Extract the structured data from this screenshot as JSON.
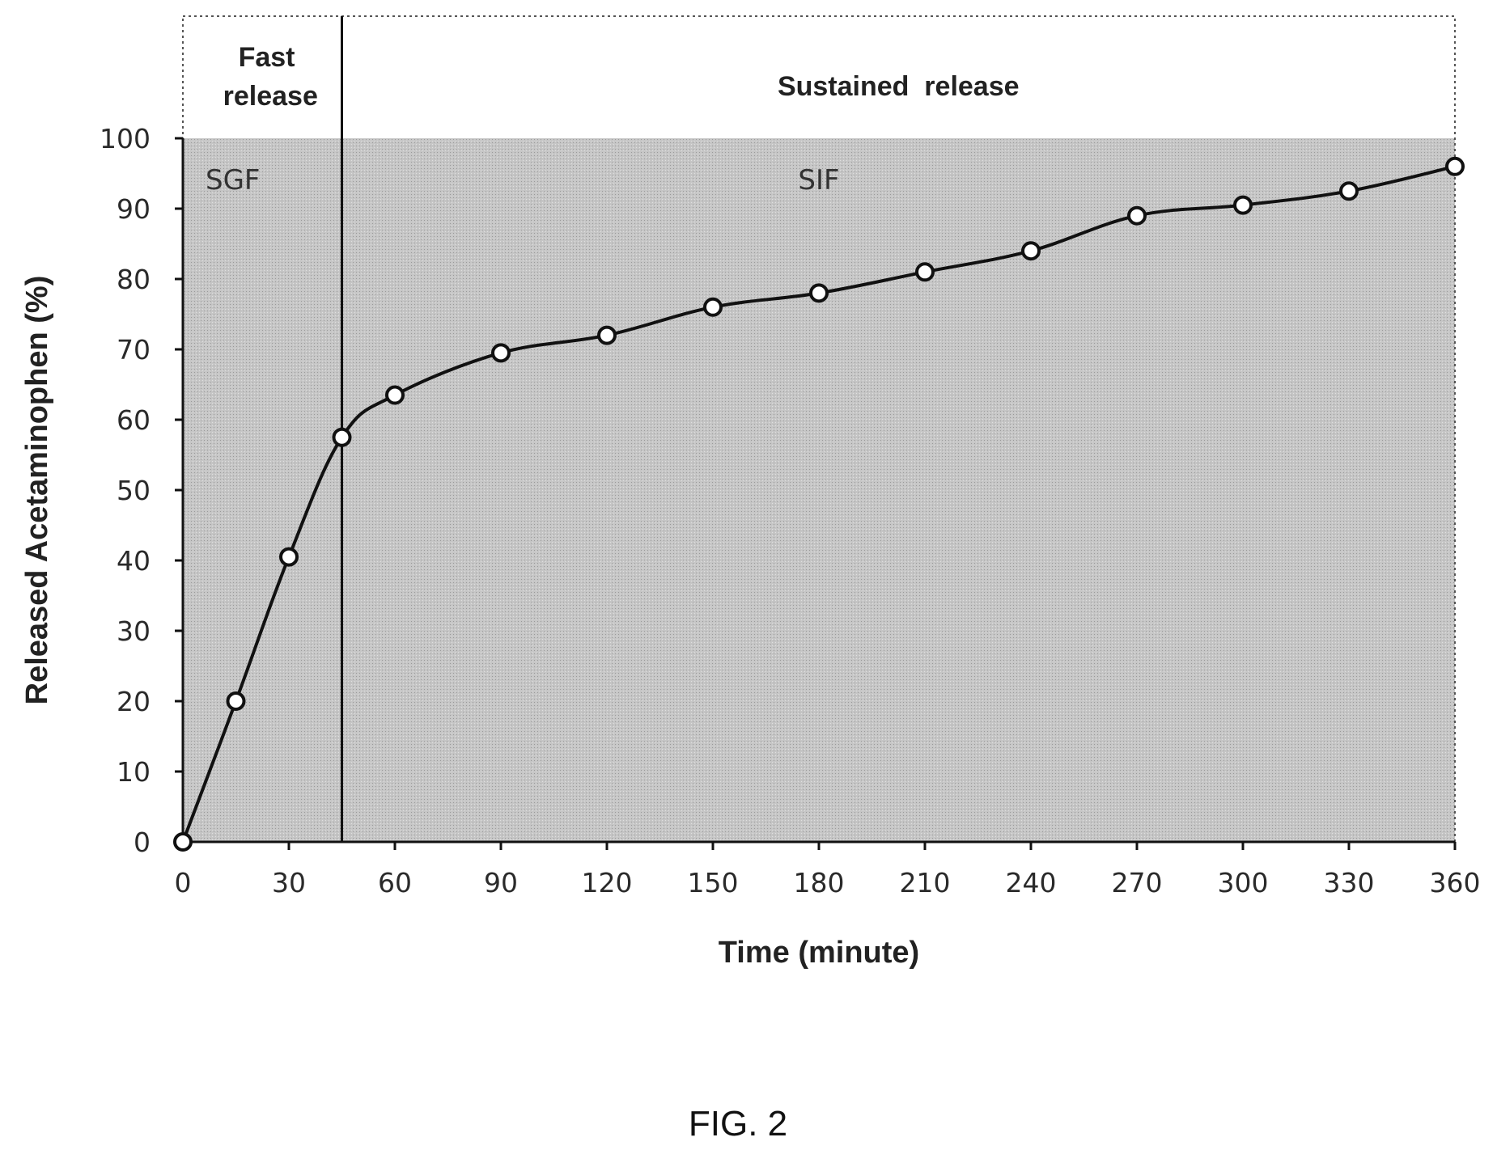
{
  "figure_caption": "FIG. 2",
  "chart_data": {
    "type": "line",
    "title": "",
    "xlabel": "Time (minute)",
    "ylabel": "Released Acetaminophen (%)",
    "xlim": [
      0,
      360
    ],
    "ylim": [
      0,
      100
    ],
    "x_ticks": [
      0,
      30,
      60,
      90,
      120,
      150,
      180,
      210,
      240,
      270,
      300,
      330,
      360
    ],
    "y_ticks": [
      0,
      10,
      20,
      30,
      40,
      50,
      60,
      70,
      80,
      90,
      100
    ],
    "series": [
      {
        "x": [
          0,
          15,
          30,
          45,
          60,
          90,
          120,
          150,
          180,
          210,
          240,
          270,
          300,
          330,
          360
        ],
        "y": [
          0,
          20,
          40.5,
          57.5,
          63.5,
          69.5,
          72,
          76,
          78,
          81,
          84,
          89,
          90.5,
          92.5,
          96
        ],
        "marker": "open-circle"
      }
    ],
    "regions": [
      {
        "label": "Fast\nrelease",
        "medium": "SGF",
        "x_start": 0,
        "x_end": 45
      },
      {
        "label": "Sustained  release",
        "medium": "SIF",
        "x_start": 45,
        "x_end": 360
      }
    ],
    "divider_x": 45,
    "grid": false,
    "shading_color": "#c4c4c4",
    "line_color": "#111111",
    "marker_fill": "#ffffff"
  }
}
